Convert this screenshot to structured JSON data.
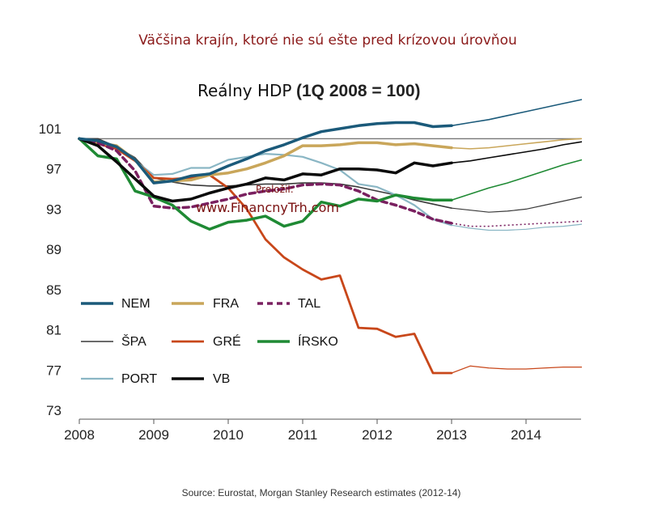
{
  "titles": {
    "top": "Väčšina krajín, ktoré nie sú ešte pred krízovou úrovňou",
    "main_part1": "Reálny HDP",
    "main_part2": "(1Q 2008 = 100)"
  },
  "credit": {
    "label": "Preložil:",
    "url": "www.FinancnyTrh.com"
  },
  "source": "Source: Eurostat, Morgan Stanley Research estimates (2012-14)",
  "chart_data": {
    "type": "line",
    "title": "Reálny HDP (1Q 2008 = 100)",
    "xlabel": "",
    "ylabel": "",
    "xlim": [
      2008,
      2014.75
    ],
    "ylim": [
      73,
      103
    ],
    "x_ticks": [
      "2008",
      "2009",
      "2010",
      "2011",
      "2012",
      "2013",
      "2014"
    ],
    "y_ticks": [
      "73",
      "77",
      "81",
      "85",
      "89",
      "93",
      "97",
      "101"
    ],
    "reference_line": 100,
    "estimate_start": 2013.0,
    "series": [
      {
        "name": "NEM",
        "color": "#1b5a7a",
        "width": 3.5,
        "points": [
          [
            2008,
            100
          ],
          [
            2008.25,
            99.8
          ],
          [
            2008.5,
            99.2
          ],
          [
            2008.75,
            97.9
          ],
          [
            2009,
            95.6
          ],
          [
            2009.25,
            95.8
          ],
          [
            2009.5,
            96.3
          ],
          [
            2009.75,
            96.5
          ],
          [
            2010,
            97.3
          ],
          [
            2010.25,
            98.0
          ],
          [
            2010.5,
            98.8
          ],
          [
            2010.75,
            99.4
          ],
          [
            2011,
            100.1
          ],
          [
            2011.25,
            100.7
          ],
          [
            2011.5,
            101.0
          ],
          [
            2011.75,
            101.3
          ],
          [
            2012,
            101.5
          ],
          [
            2012.25,
            101.6
          ],
          [
            2012.5,
            101.6
          ],
          [
            2012.75,
            101.2
          ],
          [
            2013,
            101.3
          ],
          [
            2013.25,
            101.6
          ],
          [
            2013.5,
            101.9
          ],
          [
            2013.75,
            102.3
          ],
          [
            2014,
            102.7
          ],
          [
            2014.25,
            103.1
          ],
          [
            2014.5,
            103.5
          ],
          [
            2014.75,
            103.9
          ]
        ]
      },
      {
        "name": "FRA",
        "color": "#c9a65a",
        "width": 3.5,
        "points": [
          [
            2008,
            100
          ],
          [
            2008.25,
            99.6
          ],
          [
            2008.5,
            99.3
          ],
          [
            2008.75,
            97.9
          ],
          [
            2009,
            95.7
          ],
          [
            2009.25,
            95.8
          ],
          [
            2009.5,
            95.9
          ],
          [
            2009.75,
            96.4
          ],
          [
            2010,
            96.6
          ],
          [
            2010.25,
            97.0
          ],
          [
            2010.5,
            97.6
          ],
          [
            2010.75,
            98.3
          ],
          [
            2011,
            99.3
          ],
          [
            2011.25,
            99.3
          ],
          [
            2011.5,
            99.4
          ],
          [
            2011.75,
            99.6
          ],
          [
            2012,
            99.6
          ],
          [
            2012.25,
            99.4
          ],
          [
            2012.5,
            99.5
          ],
          [
            2012.75,
            99.3
          ],
          [
            2013,
            99.1
          ],
          [
            2013.25,
            99.0
          ],
          [
            2013.5,
            99.1
          ],
          [
            2013.75,
            99.3
          ],
          [
            2014,
            99.5
          ],
          [
            2014.25,
            99.7
          ],
          [
            2014.5,
            99.9
          ],
          [
            2014.75,
            100.0
          ]
        ]
      },
      {
        "name": "TAL",
        "color": "#7a2060",
        "width": 3.5,
        "dash": "7,5",
        "points": [
          [
            2008,
            100
          ],
          [
            2008.25,
            99.6
          ],
          [
            2008.5,
            98.8
          ],
          [
            2008.75,
            96.8
          ],
          [
            2009,
            93.3
          ],
          [
            2009.25,
            93.1
          ],
          [
            2009.5,
            93.2
          ],
          [
            2009.75,
            93.6
          ],
          [
            2010,
            94.0
          ],
          [
            2010.25,
            94.5
          ],
          [
            2010.5,
            94.8
          ],
          [
            2010.75,
            95.0
          ],
          [
            2011,
            95.4
          ],
          [
            2011.25,
            95.5
          ],
          [
            2011.5,
            95.4
          ],
          [
            2011.75,
            94.8
          ],
          [
            2012,
            93.9
          ],
          [
            2012.25,
            93.4
          ],
          [
            2012.5,
            92.8
          ],
          [
            2012.75,
            92.0
          ],
          [
            2013,
            91.6
          ],
          [
            2013.25,
            91.3
          ],
          [
            2013.5,
            91.3
          ],
          [
            2013.75,
            91.4
          ],
          [
            2014,
            91.5
          ],
          [
            2014.25,
            91.6
          ],
          [
            2014.5,
            91.7
          ],
          [
            2014.75,
            91.8
          ]
        ]
      },
      {
        "name": "ŠPA",
        "color": "#3a3a3a",
        "width": 1.6,
        "points": [
          [
            2008,
            100
          ],
          [
            2008.25,
            100.0
          ],
          [
            2008.5,
            99.2
          ],
          [
            2008.75,
            98.1
          ],
          [
            2009,
            96.1
          ],
          [
            2009.25,
            95.7
          ],
          [
            2009.5,
            95.4
          ],
          [
            2009.75,
            95.3
          ],
          [
            2010,
            95.3
          ],
          [
            2010.25,
            95.4
          ],
          [
            2010.5,
            95.5
          ],
          [
            2010.75,
            95.5
          ],
          [
            2011,
            95.6
          ],
          [
            2011.25,
            95.6
          ],
          [
            2011.5,
            95.5
          ],
          [
            2011.75,
            95.2
          ],
          [
            2012,
            94.8
          ],
          [
            2012.25,
            94.4
          ],
          [
            2012.5,
            93.9
          ],
          [
            2012.75,
            93.5
          ],
          [
            2013,
            93.1
          ],
          [
            2013.25,
            92.9
          ],
          [
            2013.5,
            92.7
          ],
          [
            2013.75,
            92.8
          ],
          [
            2014,
            93.0
          ],
          [
            2014.25,
            93.4
          ],
          [
            2014.5,
            93.8
          ],
          [
            2014.75,
            94.2
          ]
        ]
      },
      {
        "name": "GRÉ",
        "color": "#c8471a",
        "width": 2.8,
        "points": [
          [
            2008,
            100
          ],
          [
            2008.25,
            99.5
          ],
          [
            2008.5,
            99.0
          ],
          [
            2008.75,
            97.8
          ],
          [
            2009,
            96.1
          ],
          [
            2009.25,
            96.0
          ],
          [
            2009.5,
            96.1
          ],
          [
            2009.75,
            96.4
          ],
          [
            2010,
            95.1
          ],
          [
            2010.25,
            93.0
          ],
          [
            2010.5,
            90.0
          ],
          [
            2010.75,
            88.2
          ],
          [
            2011,
            87.0
          ],
          [
            2011.25,
            86.0
          ],
          [
            2011.5,
            86.4
          ],
          [
            2011.75,
            81.2
          ],
          [
            2012,
            81.1
          ],
          [
            2012.25,
            80.3
          ],
          [
            2012.5,
            80.6
          ],
          [
            2012.75,
            76.7
          ],
          [
            2013,
            76.7
          ],
          [
            2013.25,
            77.4
          ],
          [
            2013.5,
            77.2
          ],
          [
            2013.75,
            77.1
          ],
          [
            2014,
            77.1
          ],
          [
            2014.25,
            77.2
          ],
          [
            2014.5,
            77.3
          ],
          [
            2014.75,
            77.3
          ]
        ]
      },
      {
        "name": "ÍRSKO",
        "color": "#1f8a34",
        "width": 3.5,
        "points": [
          [
            2008,
            100
          ],
          [
            2008.25,
            98.3
          ],
          [
            2008.5,
            98.0
          ],
          [
            2008.75,
            94.8
          ],
          [
            2009,
            94.2
          ],
          [
            2009.25,
            93.4
          ],
          [
            2009.5,
            91.8
          ],
          [
            2009.75,
            91.0
          ],
          [
            2010,
            91.7
          ],
          [
            2010.25,
            91.9
          ],
          [
            2010.5,
            92.3
          ],
          [
            2010.75,
            91.3
          ],
          [
            2011,
            91.8
          ],
          [
            2011.25,
            93.7
          ],
          [
            2011.5,
            93.3
          ],
          [
            2011.75,
            94.0
          ],
          [
            2012,
            93.8
          ],
          [
            2012.25,
            94.4
          ],
          [
            2012.5,
            94.1
          ],
          [
            2012.75,
            93.9
          ],
          [
            2013,
            93.9
          ],
          [
            2013.25,
            94.5
          ],
          [
            2013.5,
            95.1
          ],
          [
            2013.75,
            95.6
          ],
          [
            2014,
            96.2
          ],
          [
            2014.25,
            96.8
          ],
          [
            2014.5,
            97.4
          ],
          [
            2014.75,
            97.9
          ]
        ]
      },
      {
        "name": "PORT",
        "color": "#8ab6c4",
        "width": 2.2,
        "points": [
          [
            2008,
            100
          ],
          [
            2008.25,
            99.7
          ],
          [
            2008.5,
            99.0
          ],
          [
            2008.75,
            97.8
          ],
          [
            2009,
            96.4
          ],
          [
            2009.25,
            96.5
          ],
          [
            2009.5,
            97.1
          ],
          [
            2009.75,
            97.1
          ],
          [
            2010,
            97.9
          ],
          [
            2010.25,
            98.2
          ],
          [
            2010.5,
            98.5
          ],
          [
            2010.75,
            98.4
          ],
          [
            2011,
            98.2
          ],
          [
            2011.25,
            97.6
          ],
          [
            2011.5,
            96.9
          ],
          [
            2011.75,
            95.5
          ],
          [
            2012,
            95.2
          ],
          [
            2012.25,
            94.4
          ],
          [
            2012.5,
            93.4
          ],
          [
            2012.75,
            92.0
          ],
          [
            2013,
            91.4
          ],
          [
            2013.25,
            91.1
          ],
          [
            2013.5,
            90.9
          ],
          [
            2013.75,
            90.9
          ],
          [
            2014,
            91.0
          ],
          [
            2014.25,
            91.2
          ],
          [
            2014.5,
            91.3
          ],
          [
            2014.75,
            91.5
          ]
        ]
      },
      {
        "name": "VB",
        "color": "#0a0a0a",
        "width": 3.5,
        "points": [
          [
            2008,
            100
          ],
          [
            2008.25,
            99.3
          ],
          [
            2008.5,
            97.7
          ],
          [
            2008.75,
            96.0
          ],
          [
            2009,
            94.3
          ],
          [
            2009.25,
            93.8
          ],
          [
            2009.5,
            94.0
          ],
          [
            2009.75,
            94.6
          ],
          [
            2010,
            95.1
          ],
          [
            2010.25,
            95.5
          ],
          [
            2010.5,
            96.1
          ],
          [
            2010.75,
            95.9
          ],
          [
            2011,
            96.5
          ],
          [
            2011.25,
            96.4
          ],
          [
            2011.5,
            97.0
          ],
          [
            2011.75,
            97.0
          ],
          [
            2012,
            96.9
          ],
          [
            2012.25,
            96.6
          ],
          [
            2012.5,
            97.6
          ],
          [
            2012.75,
            97.3
          ],
          [
            2013,
            97.6
          ],
          [
            2013.25,
            97.8
          ],
          [
            2013.5,
            98.1
          ],
          [
            2013.75,
            98.4
          ],
          [
            2014,
            98.7
          ],
          [
            2014.25,
            99.0
          ],
          [
            2014.5,
            99.4
          ],
          [
            2014.75,
            99.7
          ]
        ]
      }
    ],
    "legend": [
      [
        "NEM",
        "FRA",
        "TAL"
      ],
      [
        "ŠPA",
        "GRÉ",
        "ÍRSKO"
      ],
      [
        "PORT",
        "VB"
      ]
    ]
  }
}
